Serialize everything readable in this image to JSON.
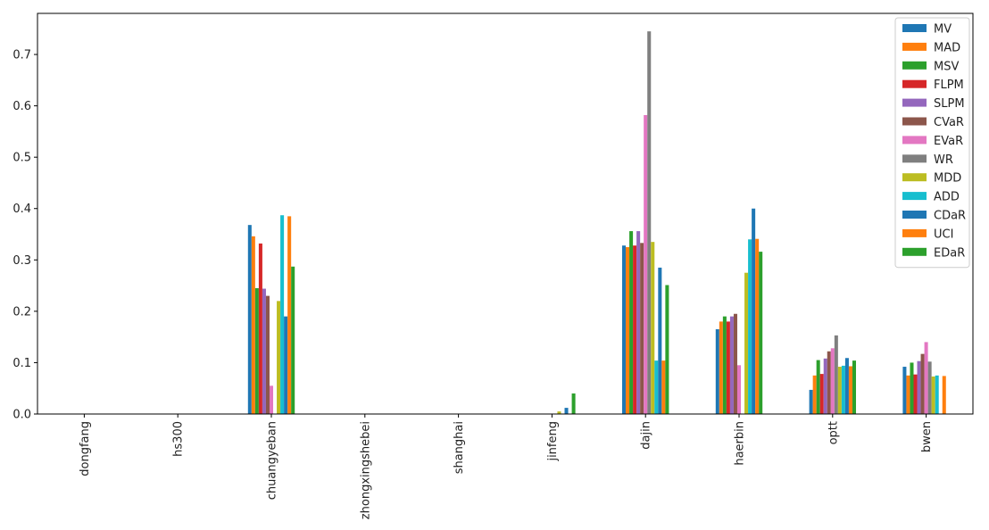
{
  "chart_data": {
    "type": "bar",
    "title": "",
    "xlabel": "",
    "ylabel": "",
    "ylim": [
      0,
      0.78
    ],
    "yticks": [
      0.0,
      0.1,
      0.2,
      0.3,
      0.4,
      0.5,
      0.6,
      0.7
    ],
    "grid": false,
    "legend_position": "top-right",
    "categories": [
      "dongfang",
      "hs300",
      "chuangyeban",
      "zhongxingshebei",
      "shanghai",
      "jinfeng",
      "dajin",
      "haerbin",
      "optt",
      "bwen"
    ],
    "series": [
      {
        "name": "MV",
        "color": "#1f77b4",
        "values": [
          0,
          0,
          0.368,
          0,
          0,
          0,
          0.328,
          0.165,
          0.047,
          0.092
        ]
      },
      {
        "name": "MAD",
        "color": "#ff7f0e",
        "values": [
          0,
          0,
          0.346,
          0,
          0,
          0,
          0.325,
          0.18,
          0.075,
          0.075
        ]
      },
      {
        "name": "MSV",
        "color": "#2ca02c",
        "values": [
          0,
          0,
          0.245,
          0,
          0,
          0,
          0.356,
          0.19,
          0.105,
          0.1
        ]
      },
      {
        "name": "FLPM",
        "color": "#d62728",
        "values": [
          0,
          0,
          0.332,
          0,
          0,
          0,
          0.328,
          0.18,
          0.078,
          0.077
        ]
      },
      {
        "name": "SLPM",
        "color": "#9467bd",
        "values": [
          0,
          0,
          0.244,
          0,
          0,
          0,
          0.356,
          0.19,
          0.108,
          0.103
        ]
      },
      {
        "name": "CVaR",
        "color": "#8c564b",
        "values": [
          0,
          0,
          0.23,
          0,
          0,
          0,
          0.333,
          0.195,
          0.122,
          0.117
        ]
      },
      {
        "name": "EVaR",
        "color": "#e377c2",
        "values": [
          0,
          0,
          0.055,
          0,
          0,
          0,
          0.582,
          0.095,
          0.128,
          0.14
        ]
      },
      {
        "name": "WR",
        "color": "#7f7f7f",
        "values": [
          0,
          0,
          0,
          0,
          0,
          0,
          0.745,
          0,
          0.153,
          0.102
        ]
      },
      {
        "name": "MDD",
        "color": "#bcbd22",
        "values": [
          0,
          0,
          0.22,
          0,
          0,
          0.005,
          0.335,
          0.275,
          0.092,
          0.073
        ]
      },
      {
        "name": "ADD",
        "color": "#17becf",
        "values": [
          0,
          0,
          0.387,
          0,
          0,
          0,
          0.104,
          0.34,
          0.094,
          0.075
        ]
      },
      {
        "name": "CDaR",
        "color": "#1f77b4",
        "values": [
          0,
          0,
          0.19,
          0,
          0,
          0.012,
          0.285,
          0.4,
          0.109,
          0
        ]
      },
      {
        "name": "UCI",
        "color": "#ff7f0e",
        "values": [
          0,
          0,
          0.385,
          0,
          0,
          0,
          0.104,
          0.341,
          0.093,
          0.074
        ]
      },
      {
        "name": "EDaR",
        "color": "#2ca02c",
        "values": [
          0,
          0,
          0.287,
          0,
          0,
          0.04,
          0.251,
          0.316,
          0.104,
          0
        ]
      }
    ]
  }
}
